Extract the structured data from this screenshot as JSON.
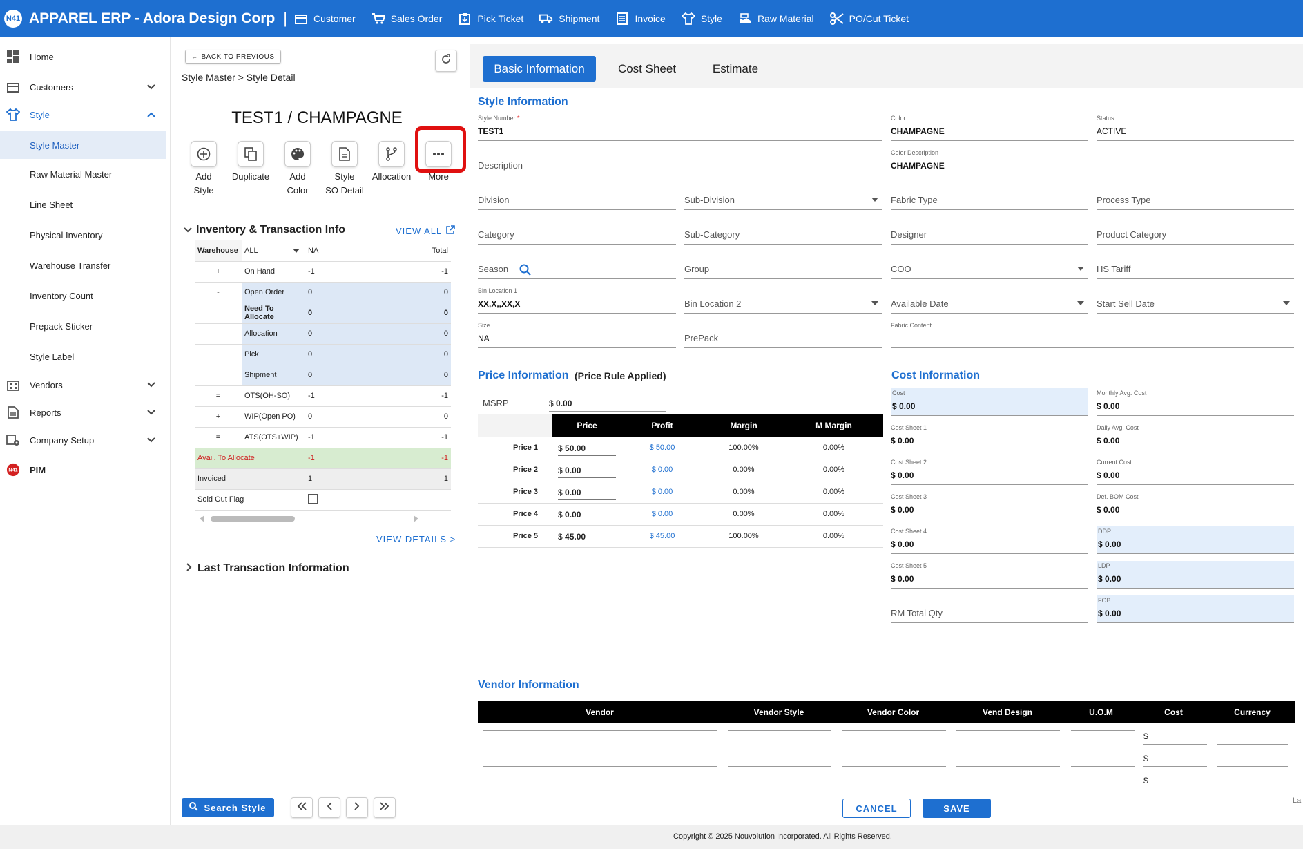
{
  "topbar": {
    "logo": "N41",
    "brand": "APPAREL ERP  -  Adora Design Corp",
    "sep": "|",
    "nav": [
      {
        "label": "Customer",
        "icon": "customer-icon"
      },
      {
        "label": "Sales Order",
        "icon": "cart-icon"
      },
      {
        "label": "Pick Ticket",
        "icon": "clipboard-icon"
      },
      {
        "label": "Shipment",
        "icon": "truck-icon"
      },
      {
        "label": "Invoice",
        "icon": "invoice-icon"
      },
      {
        "label": "Style",
        "icon": "shirt-icon"
      },
      {
        "label": "Raw Material",
        "icon": "raw-material-icon"
      },
      {
        "label": "PO/Cut Ticket",
        "icon": "scissors-icon"
      }
    ]
  },
  "sidebar": {
    "home": "Home",
    "customers": "Customers",
    "style": "Style",
    "style_items": [
      "Style Master",
      "Raw Material Master",
      "Line Sheet",
      "Physical Inventory",
      "Warehouse Transfer",
      "Inventory Count",
      "Prepack Sticker",
      "Style Label"
    ],
    "vendors": "Vendors",
    "reports": "Reports",
    "company_setup": "Company Setup",
    "pim": "PIM"
  },
  "left": {
    "back": "BACK TO PREVIOUS",
    "breadcrumb": "Style Master > Style Detail",
    "title": "TEST1 / CHAMPAGNE",
    "actions": {
      "add_style": [
        "Add",
        "Style"
      ],
      "duplicate": "Duplicate",
      "add_color": [
        "Add",
        "Color"
      ],
      "style_so": [
        "Style",
        "SO Detail"
      ],
      "allocation": "Allocation",
      "more": "More"
    },
    "inv_header": "Inventory & Transaction Info",
    "view_all": "VIEW ALL",
    "warehouse_label": "Warehouse",
    "warehouse_value": "ALL",
    "col_na": "NA",
    "col_total": "Total",
    "rows": [
      {
        "sign": "+",
        "label": "On Hand",
        "na": "-1",
        "total": "-1"
      },
      {
        "sign": "-",
        "label": "Open Order",
        "na": "0",
        "total": "0"
      },
      {
        "sign": "",
        "label": "Need To Allocate",
        "na": "0",
        "total": "0"
      },
      {
        "sign": "",
        "label": "Allocation",
        "na": "0",
        "total": "0"
      },
      {
        "sign": "",
        "label": "Pick",
        "na": "0",
        "total": "0"
      },
      {
        "sign": "",
        "label": "Shipment",
        "na": "0",
        "total": "0"
      },
      {
        "sign": "=",
        "label": "OTS(OH-SO)",
        "na": "-1",
        "total": "-1"
      },
      {
        "sign": "+",
        "label": "WIP(Open PO)",
        "na": "0",
        "total": "0"
      },
      {
        "sign": "=",
        "label": "ATS(OTS+WIP)",
        "na": "-1",
        "total": "-1"
      },
      {
        "sign": "",
        "label": "Avail. To Allocate",
        "na": "-1",
        "total": "-1"
      },
      {
        "sign": "",
        "label": "Invoiced",
        "na": "1",
        "total": "1"
      },
      {
        "sign": "",
        "label": "Sold Out Flag",
        "na": "",
        "total": ""
      }
    ],
    "view_details": "VIEW DETAILS >",
    "last_tx": "Last Transaction Information"
  },
  "tabs": [
    "Basic Information",
    "Cost Sheet",
    "Estimate"
  ],
  "style_info": {
    "header": "Style Information",
    "style_number_label": "Style Number",
    "style_number": "TEST1",
    "color_label": "Color",
    "color": "CHAMPAGNE",
    "status_label": "Status",
    "status": "ACTIVE",
    "description": "Description",
    "color_desc_label": "Color Description",
    "color_desc": "CHAMPAGNE",
    "division": "Division",
    "sub_division": "Sub-Division",
    "fabric_type": "Fabric Type",
    "process_type": "Process Type",
    "category": "Category",
    "sub_category": "Sub-Category",
    "designer": "Designer",
    "product_category": "Product Category",
    "season": "Season",
    "group": "Group",
    "coo": "COO",
    "hs_tariff": "HS Tariff",
    "bin1_label": "Bin Location 1",
    "bin1": "XX,X,,XX,X",
    "bin2": "Bin Location 2",
    "available_date": "Available Date",
    "start_sell_date": "Start Sell Date",
    "size_label": "Size",
    "size": "NA",
    "prepack": "PrePack",
    "fabric_content": "Fabric Content"
  },
  "price_info": {
    "header": "Price Information",
    "rule": "(Price Rule Applied)",
    "msrp_label": "MSRP",
    "msrp": "0.00",
    "currency": "$",
    "columns": [
      "Price",
      "Profit",
      "Margin",
      "M Margin"
    ],
    "rows": [
      {
        "label": "Price 1",
        "price": "50.00",
        "profit": "$ 50.00",
        "margin": "100.00%",
        "mmargin": "0.00%"
      },
      {
        "label": "Price 2",
        "price": "0.00",
        "profit": "$ 0.00",
        "margin": "0.00%",
        "mmargin": "0.00%"
      },
      {
        "label": "Price 3",
        "price": "0.00",
        "profit": "$ 0.00",
        "margin": "0.00%",
        "mmargin": "0.00%"
      },
      {
        "label": "Price 4",
        "price": "0.00",
        "profit": "$ 0.00",
        "margin": "0.00%",
        "mmargin": "0.00%"
      },
      {
        "label": "Price 5",
        "price": "45.00",
        "profit": "$ 45.00",
        "margin": "100.00%",
        "mmargin": "0.00%"
      }
    ]
  },
  "cost_info": {
    "header": "Cost Information",
    "left": [
      {
        "label": "Cost",
        "value": "$ 0.00"
      },
      {
        "label": "Cost Sheet 1",
        "value": "$ 0.00"
      },
      {
        "label": "Cost Sheet 2",
        "value": "$ 0.00"
      },
      {
        "label": "Cost Sheet 3",
        "value": "$ 0.00"
      },
      {
        "label": "Cost Sheet 4",
        "value": "$ 0.00"
      },
      {
        "label": "Cost Sheet 5",
        "value": "$ 0.00"
      }
    ],
    "rm_total": "RM Total Qty",
    "right": [
      {
        "label": "Monthly Avg. Cost",
        "value": "$ 0.00"
      },
      {
        "label": "Daily Avg. Cost",
        "value": "$ 0.00"
      },
      {
        "label": "Current Cost",
        "value": "$ 0.00"
      },
      {
        "label": "Def. BOM Cost",
        "value": "$ 0.00"
      },
      {
        "label": "DDP",
        "value": "$ 0.00"
      },
      {
        "label": "LDP",
        "value": "$ 0.00"
      },
      {
        "label": "FOB",
        "value": "$ 0.00"
      }
    ]
  },
  "vendor_info": {
    "header": "Vendor Information",
    "columns": [
      "Vendor",
      "Vendor Style",
      "Vendor Color",
      "Vend Design",
      "U.O.M",
      "Cost",
      "Currency"
    ],
    "currency_sym": "$"
  },
  "bottom": {
    "search": "Search Style",
    "cancel": "CANCEL",
    "save": "SAVE",
    "cut_text": "La"
  },
  "footer": "Copyright © 2025 Nouvolution Incorporated. All Rights Reserved.",
  "colors": {
    "primary": "#1e6fd0",
    "highlight": "#e01010",
    "green_row": "#d7ecd0",
    "blue_row": "#dde8f6"
  }
}
